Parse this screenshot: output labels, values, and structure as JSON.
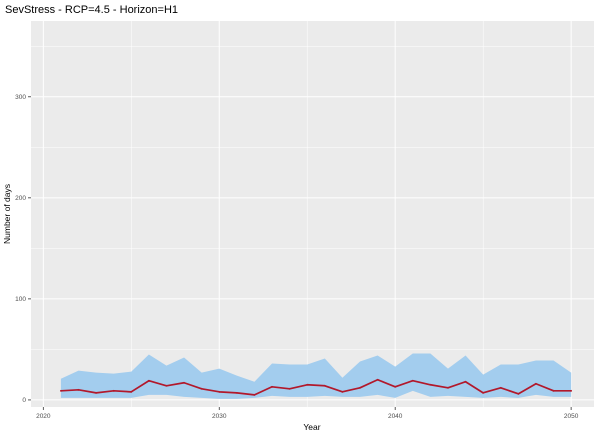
{
  "chart_data": {
    "type": "area",
    "title": "SevStress - RCP=4.5 - Horizon=H1",
    "xlabel": "Year",
    "ylabel": "Number of days",
    "xlim": [
      2019.3,
      2051.3
    ],
    "ylim": [
      -7,
      375
    ],
    "x_ticks": [
      "2020",
      "2030",
      "2040",
      "2050"
    ],
    "y_ticks": [
      "0",
      "100",
      "200",
      "300"
    ],
    "grid": true,
    "legend": "none",
    "colors": {
      "panel_background": "#ebebeb",
      "grid": "#ffffff",
      "band_fill": "#a3cdee",
      "median_line": "#b2182b"
    },
    "x": [
      2021,
      2022,
      2023,
      2024,
      2025,
      2026,
      2027,
      2028,
      2029,
      2030,
      2031,
      2032,
      2033,
      2034,
      2035,
      2036,
      2037,
      2038,
      2039,
      2040,
      2041,
      2042,
      2043,
      2044,
      2045,
      2046,
      2047,
      2048,
      2049,
      2050
    ],
    "series": [
      {
        "role": "band",
        "lower": [
          2,
          2,
          2,
          2,
          2,
          5,
          5,
          3,
          2,
          1,
          1,
          2,
          4,
          3,
          3,
          4,
          3,
          3,
          5,
          2,
          9,
          3,
          4,
          3,
          2,
          3,
          2,
          5,
          3,
          3
        ],
        "upper": [
          21,
          29,
          27,
          26,
          28,
          45,
          34,
          42,
          27,
          31,
          24,
          18,
          36,
          35,
          35,
          41,
          22,
          38,
          44,
          33,
          46,
          46,
          31,
          44,
          25,
          35,
          35,
          39,
          39,
          27
        ]
      },
      {
        "role": "line",
        "values": [
          9,
          10,
          7,
          9,
          8,
          19,
          14,
          17,
          11,
          8,
          7,
          5,
          13,
          11,
          15,
          14,
          8,
          12,
          20,
          13,
          19,
          15,
          12,
          18,
          7,
          12,
          6,
          16,
          9,
          9
        ]
      }
    ]
  }
}
